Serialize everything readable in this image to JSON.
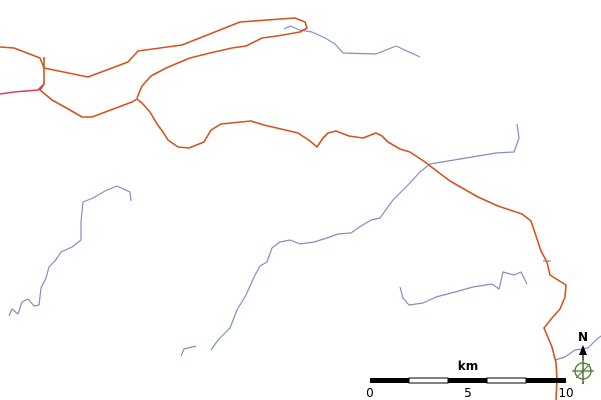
{
  "colors": {
    "road_primary": "#d2541e",
    "road_secondary": "#d93c66",
    "river": "#7f8fbf",
    "scale_dark": "#000000",
    "scale_light": "#ffffff",
    "north_arrow": "#000000",
    "marker": "#4a7a2a"
  },
  "scale_bar": {
    "unit_label": "km",
    "ticks": [
      "0",
      "5",
      "10"
    ]
  },
  "north_arrow": {
    "label": "N"
  }
}
